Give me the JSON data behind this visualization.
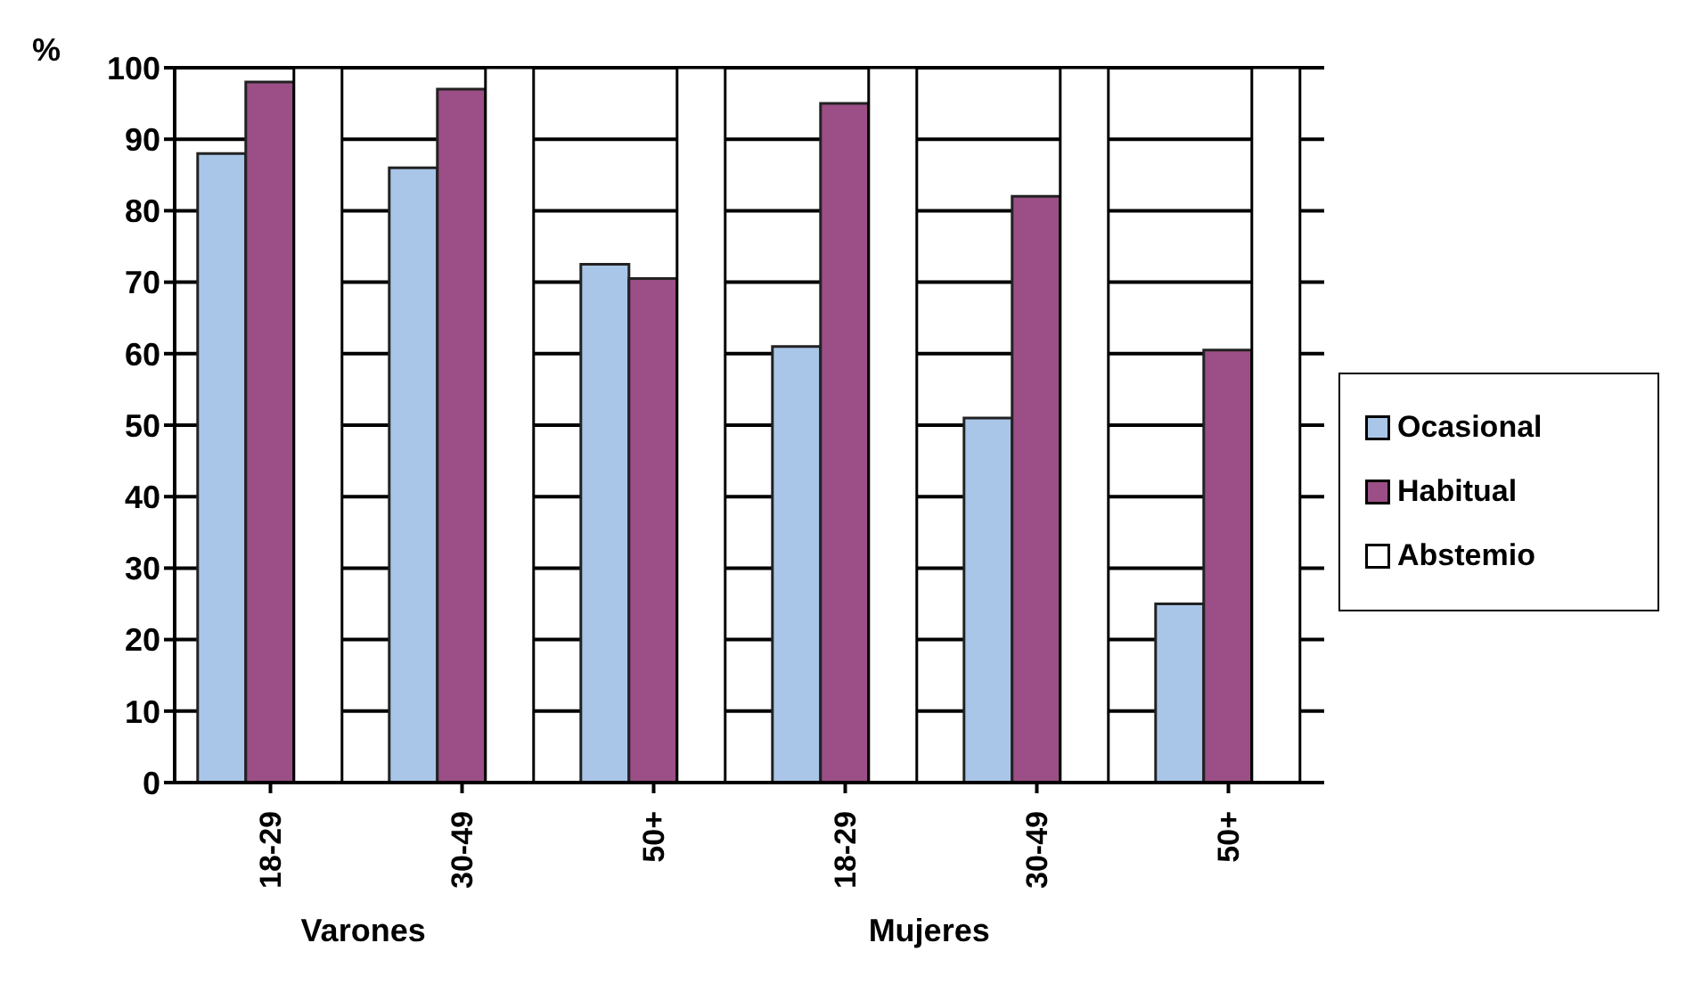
{
  "chart_data": {
    "type": "bar",
    "ylabel": "%",
    "categories": [
      "18-29",
      "30-49",
      "50+",
      "18-29",
      "30-49",
      "50+"
    ],
    "series": [
      {
        "name": "Ocasional",
        "color": "#a9c6e8",
        "values": [
          88,
          86,
          72.5,
          61,
          51,
          25
        ]
      },
      {
        "name": "Habitual",
        "color": "#9b4f86",
        "values": [
          98,
          97,
          70.5,
          95,
          82,
          60.5
        ]
      },
      {
        "name": "Abstemio",
        "color": "#ffffff",
        "values": [
          100,
          100,
          100,
          100,
          100,
          100
        ]
      }
    ],
    "ylim": [
      0,
      100
    ],
    "yticks": [
      0,
      10,
      20,
      30,
      40,
      50,
      60,
      70,
      80,
      90,
      100
    ],
    "grid": "y",
    "legend": "right",
    "annotations": [
      "Varones",
      "Mujeres"
    ]
  }
}
